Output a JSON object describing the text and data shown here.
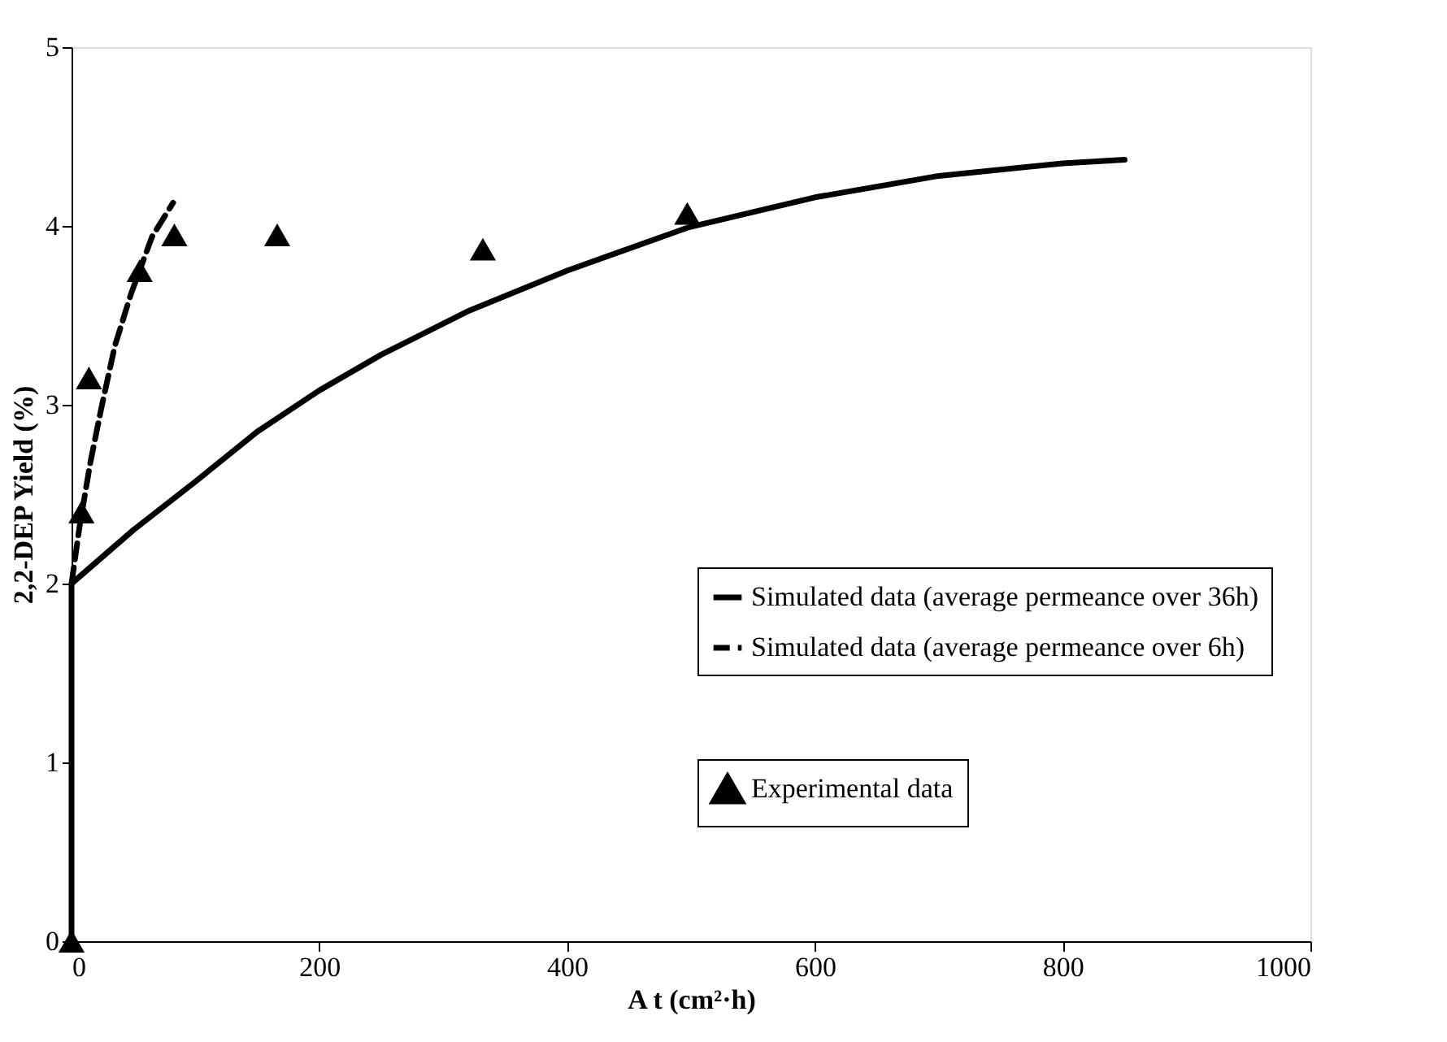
{
  "chart_data": {
    "type": "line",
    "xlabel": "A t (cm²·h)",
    "ylabel": "2,2-DEP Yield  (%)",
    "xlim": [
      0,
      1000
    ],
    "ylim": [
      0,
      5
    ],
    "xticks": [
      0,
      200,
      400,
      600,
      800,
      1000
    ],
    "yticks": [
      0,
      1,
      2,
      3,
      4,
      5
    ],
    "grid": false,
    "legend": "bottom right",
    "series": [
      {
        "name": "Simulated data (average permeance over 36h)",
        "line_style": "solid",
        "marker": "none",
        "color": "#000000",
        "x": [
          0,
          0,
          50,
          100,
          150,
          200,
          250,
          319,
          400,
          497,
          600,
          700,
          800,
          850
        ],
        "values": [
          0,
          2.0,
          2.3,
          2.57,
          2.85,
          3.08,
          3.28,
          3.52,
          3.75,
          3.99,
          4.16,
          4.28,
          4.35,
          4.37
        ]
      },
      {
        "name": "Simulated data (average permeance over 6h)",
        "line_style": "dashed",
        "marker": "none",
        "color": "#000000",
        "x": [
          0,
          6.5,
          15,
          24,
          35,
          48,
          65,
          82
        ],
        "values": [
          2.0,
          2.32,
          2.67,
          2.98,
          3.33,
          3.62,
          3.94,
          4.13
        ]
      },
      {
        "name": "Experimental data",
        "type": "scatter",
        "marker": "triangle",
        "color": "#000000",
        "x": [
          0,
          8,
          14,
          55,
          83,
          166,
          332,
          497
        ],
        "values": [
          0,
          2.4,
          3.15,
          3.75,
          3.95,
          3.95,
          3.87,
          4.07
        ]
      }
    ]
  }
}
